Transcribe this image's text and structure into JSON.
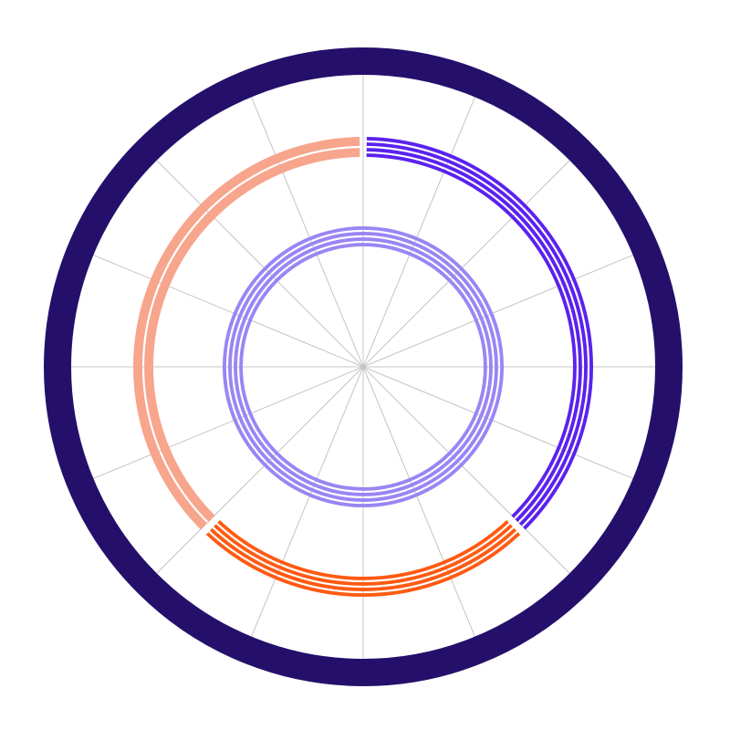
{
  "chart_data": {
    "type": "pie",
    "title": "",
    "grid": true,
    "grid_spokes": 16,
    "outer_ring_color": "#24106b",
    "grid_color": "#c4c4c4",
    "outer_segments": [
      {
        "share": 0.3778,
        "color": "#5a22ee",
        "stripes": 4
      },
      {
        "share": 0.2444,
        "color": "#ff5a12",
        "stripes": 4
      },
      {
        "share": 0.3778,
        "color": "#f7a58c",
        "stripes": 2
      }
    ],
    "inner_ring": {
      "share": 1.0,
      "color": "#9a85f4",
      "stripes": 4
    }
  }
}
